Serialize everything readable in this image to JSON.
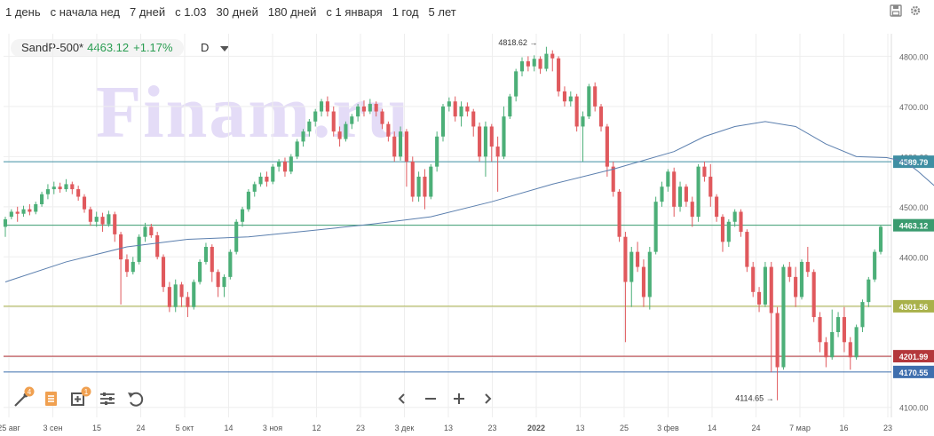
{
  "periods": [
    "1 день",
    "с начала нед",
    "7 дней",
    "с 1.03",
    "30 дней",
    "180 дней",
    "с 1 января",
    "1 год",
    "5 лет"
  ],
  "ticker": {
    "symbol": "SandP-500*",
    "value": "4463.12",
    "change": "+1.17%",
    "timeframe": "D"
  },
  "watermark": "Finam.ru",
  "icons": [
    "save-icon",
    "settings-icon",
    "draw-tool-icon",
    "indicators-icon",
    "add-instrument-icon",
    "bar-style-icon",
    "reset-icon"
  ],
  "nav_icons": [
    "chevron-left-icon",
    "zoom-out-icon",
    "zoom-in-icon",
    "chevron-right-icon"
  ],
  "tool_badges": [
    "4",
    "1"
  ],
  "colors": {
    "up": "#4caf78",
    "down": "#e0595d",
    "ma": "#5b7fae",
    "grid": "#eeeeee"
  },
  "chart_data": {
    "type": "candlestick",
    "instrument": "SandP-500*",
    "ylim": [
      4080,
      4845
    ],
    "yticks": [
      4100,
      4200,
      4300,
      4400,
      4500,
      4600,
      4700,
      4800
    ],
    "xticks": [
      "25 авг",
      "3 сен",
      "15",
      "24",
      "5 окт",
      "14",
      "3 ноя",
      "12",
      "23",
      "3 дек",
      "13",
      "23",
      "2022",
      "13",
      "25",
      "3 фев",
      "14",
      "24",
      "7 мар",
      "16",
      "23"
    ],
    "annotations": [
      {
        "text": "4818.62",
        "value": 4818.62
      },
      {
        "text": "4114.65",
        "value": 4114.65
      }
    ],
    "levels": [
      {
        "value": 4589.79,
        "label": "4589.79",
        "color": "#3f8fa3"
      },
      {
        "value": 4463.12,
        "label": "4463.12",
        "color": "#3a9b6f"
      },
      {
        "value": 4301.56,
        "label": "4301.56",
        "color": "#a9b14a"
      },
      {
        "value": 4201.99,
        "label": "4201.99",
        "color": "#b4383c"
      },
      {
        "value": 4170.55,
        "label": "4170.55",
        "color": "#3f6fae"
      }
    ],
    "candles": [
      [
        4460,
        4475,
        4440,
        4480
      ],
      [
        4480,
        4490,
        4475,
        4495
      ],
      [
        4490,
        4486,
        4470,
        4500
      ],
      [
        4486,
        4495,
        4480,
        4502
      ],
      [
        4495,
        4490,
        4483,
        4505
      ],
      [
        4490,
        4505,
        4485,
        4510
      ],
      [
        4505,
        4525,
        4500,
        4530
      ],
      [
        4525,
        4535,
        4515,
        4545
      ],
      [
        4535,
        4540,
        4525,
        4550
      ],
      [
        4540,
        4535,
        4528,
        4548
      ],
      [
        4535,
        4545,
        4530,
        4555
      ],
      [
        4545,
        4535,
        4525,
        4550
      ],
      [
        4535,
        4520,
        4512,
        4542
      ],
      [
        4520,
        4495,
        4488,
        4525
      ],
      [
        4495,
        4470,
        4462,
        4500
      ],
      [
        4470,
        4480,
        4460,
        4490
      ],
      [
        4480,
        4465,
        4450,
        4488
      ],
      [
        4465,
        4485,
        4460,
        4492
      ],
      [
        4485,
        4445,
        4430,
        4490
      ],
      [
        4445,
        4395,
        4305,
        4450
      ],
      [
        4395,
        4370,
        4360,
        4405
      ],
      [
        4370,
        4390,
        4365,
        4400
      ],
      [
        4390,
        4440,
        4385,
        4445
      ],
      [
        4440,
        4460,
        4430,
        4468
      ],
      [
        4460,
        4443,
        4438,
        4466
      ],
      [
        4443,
        4400,
        4395,
        4450
      ],
      [
        4400,
        4340,
        4330,
        4405
      ],
      [
        4340,
        4300,
        4290,
        4350
      ],
      [
        4300,
        4345,
        4290,
        4355
      ],
      [
        4345,
        4320,
        4300,
        4350
      ],
      [
        4320,
        4300,
        4280,
        4330
      ],
      [
        4300,
        4350,
        4295,
        4355
      ],
      [
        4350,
        4390,
        4345,
        4395
      ],
      [
        4390,
        4420,
        4385,
        4428
      ],
      [
        4420,
        4370,
        4350,
        4425
      ],
      [
        4370,
        4340,
        4320,
        4375
      ],
      [
        4340,
        4360,
        4320,
        4365
      ],
      [
        4360,
        4410,
        4355,
        4415
      ],
      [
        4410,
        4470,
        4405,
        4475
      ],
      [
        4470,
        4495,
        4460,
        4500
      ],
      [
        4495,
        4530,
        4490,
        4535
      ],
      [
        4530,
        4545,
        4520,
        4550
      ],
      [
        4545,
        4560,
        4540,
        4568
      ],
      [
        4560,
        4550,
        4540,
        4570
      ],
      [
        4550,
        4580,
        4545,
        4585
      ],
      [
        4580,
        4590,
        4570,
        4595
      ],
      [
        4590,
        4570,
        4560,
        4598
      ],
      [
        4570,
        4600,
        4565,
        4605
      ],
      [
        4600,
        4630,
        4595,
        4635
      ],
      [
        4630,
        4650,
        4620,
        4655
      ],
      [
        4650,
        4670,
        4640,
        4675
      ],
      [
        4670,
        4690,
        4660,
        4695
      ],
      [
        4690,
        4710,
        4680,
        4715
      ],
      [
        4710,
        4690,
        4680,
        4720
      ],
      [
        4690,
        4650,
        4640,
        4700
      ],
      [
        4650,
        4635,
        4620,
        4660
      ],
      [
        4635,
        4665,
        4630,
        4670
      ],
      [
        4665,
        4680,
        4655,
        4685
      ],
      [
        4680,
        4700,
        4670,
        4705
      ],
      [
        4700,
        4690,
        4680,
        4712
      ],
      [
        4690,
        4705,
        4685,
        4715
      ],
      [
        4705,
        4690,
        4680,
        4710
      ],
      [
        4690,
        4665,
        4655,
        4695
      ],
      [
        4665,
        4640,
        4630,
        4670
      ],
      [
        4640,
        4600,
        4590,
        4650
      ],
      [
        4600,
        4650,
        4592,
        4660
      ],
      [
        4650,
        4590,
        4540,
        4655
      ],
      [
        4590,
        4520,
        4510,
        4600
      ],
      [
        4520,
        4560,
        4510,
        4570
      ],
      [
        4560,
        4520,
        4495,
        4575
      ],
      [
        4520,
        4580,
        4515,
        4585
      ],
      [
        4580,
        4640,
        4570,
        4650
      ],
      [
        4640,
        4700,
        4630,
        4705
      ],
      [
        4700,
        4710,
        4690,
        4718
      ],
      [
        4710,
        4680,
        4670,
        4720
      ],
      [
        4680,
        4700,
        4660,
        4710
      ],
      [
        4700,
        4690,
        4680,
        4708
      ],
      [
        4690,
        4660,
        4640,
        4695
      ],
      [
        4660,
        4600,
        4590,
        4668
      ],
      [
        4600,
        4660,
        4560,
        4670
      ],
      [
        4660,
        4620,
        4590,
        4665
      ],
      [
        4620,
        4600,
        4530,
        4640
      ],
      [
        4600,
        4680,
        4595,
        4700
      ],
      [
        4680,
        4720,
        4675,
        4725
      ],
      [
        4720,
        4770,
        4710,
        4775
      ],
      [
        4770,
        4790,
        4760,
        4798
      ],
      [
        4790,
        4780,
        4770,
        4800
      ],
      [
        4780,
        4795,
        4770,
        4802
      ],
      [
        4795,
        4775,
        4765,
        4800
      ],
      [
        4775,
        4805,
        4770,
        4819
      ],
      [
        4805,
        4796,
        4770,
        4812
      ],
      [
        4796,
        4730,
        4720,
        4800
      ],
      [
        4730,
        4710,
        4700,
        4740
      ],
      [
        4710,
        4720,
        4700,
        4730
      ],
      [
        4720,
        4660,
        4650,
        4725
      ],
      [
        4660,
        4680,
        4590,
        4690
      ],
      [
        4680,
        4740,
        4675,
        4745
      ],
      [
        4740,
        4700,
        4690,
        4748
      ],
      [
        4700,
        4660,
        4650,
        4705
      ],
      [
        4660,
        4580,
        4560,
        4665
      ],
      [
        4580,
        4530,
        4520,
        4590
      ],
      [
        4530,
        4440,
        4430,
        4535
      ],
      [
        4440,
        4350,
        4230,
        4450
      ],
      [
        4350,
        4410,
        4300,
        4420
      ],
      [
        4410,
        4380,
        4370,
        4430
      ],
      [
        4380,
        4320,
        4300,
        4395
      ],
      [
        4320,
        4410,
        4295,
        4420
      ],
      [
        4410,
        4510,
        4405,
        4520
      ],
      [
        4510,
        4540,
        4500,
        4550
      ],
      [
        4540,
        4570,
        4530,
        4575
      ],
      [
        4570,
        4500,
        4480,
        4578
      ],
      [
        4500,
        4540,
        4490,
        4550
      ],
      [
        4540,
        4510,
        4500,
        4545
      ],
      [
        4510,
        4480,
        4460,
        4520
      ],
      [
        4480,
        4580,
        4470,
        4585
      ],
      [
        4580,
        4560,
        4550,
        4590
      ],
      [
        4560,
        4520,
        4500,
        4585
      ],
      [
        4520,
        4480,
        4470,
        4525
      ],
      [
        4480,
        4430,
        4410,
        4485
      ],
      [
        4430,
        4470,
        4420,
        4475
      ],
      [
        4470,
        4490,
        4460,
        4495
      ],
      [
        4490,
        4450,
        4440,
        4495
      ],
      [
        4450,
        4380,
        4370,
        4455
      ],
      [
        4380,
        4330,
        4320,
        4390
      ],
      [
        4330,
        4305,
        4290,
        4340
      ],
      [
        4305,
        4380,
        4300,
        4390
      ],
      [
        4380,
        4288,
        4170,
        4390
      ],
      [
        4288,
        4180,
        4114,
        4300
      ],
      [
        4180,
        4380,
        4175,
        4385
      ],
      [
        4380,
        4360,
        4350,
        4390
      ],
      [
        4360,
        4320,
        4300,
        4380
      ],
      [
        4320,
        4390,
        4315,
        4395
      ],
      [
        4390,
        4370,
        4360,
        4420
      ],
      [
        4370,
        4280,
        4270,
        4375
      ],
      [
        4280,
        4230,
        4210,
        4290
      ],
      [
        4230,
        4200,
        4180,
        4240
      ],
      [
        4200,
        4250,
        4195,
        4295
      ],
      [
        4250,
        4280,
        4240,
        4290
      ],
      [
        4280,
        4230,
        4210,
        4300
      ],
      [
        4230,
        4200,
        4175,
        4240
      ],
      [
        4200,
        4260,
        4195,
        4265
      ],
      [
        4260,
        4310,
        4250,
        4315
      ],
      [
        4310,
        4355,
        4300,
        4360
      ],
      [
        4355,
        4410,
        4350,
        4415
      ],
      [
        4410,
        4460,
        4405,
        4463
      ]
    ],
    "ma": [
      [
        0,
        4350
      ],
      [
        10,
        4390
      ],
      [
        20,
        4420
      ],
      [
        30,
        4435
      ],
      [
        40,
        4440
      ],
      [
        50,
        4452
      ],
      [
        60,
        4465
      ],
      [
        70,
        4480
      ],
      [
        80,
        4510
      ],
      [
        90,
        4545
      ],
      [
        100,
        4575
      ],
      [
        110,
        4610
      ],
      [
        115,
        4640
      ],
      [
        120,
        4660
      ],
      [
        125,
        4670
      ],
      [
        130,
        4660
      ],
      [
        135,
        4625
      ],
      [
        140,
        4600
      ],
      [
        145,
        4598
      ],
      [
        148,
        4590
      ],
      [
        150,
        4572
      ],
      [
        153,
        4540
      ],
      [
        156,
        4500
      ],
      [
        158,
        4470
      ],
      [
        160,
        4460
      ]
    ]
  }
}
